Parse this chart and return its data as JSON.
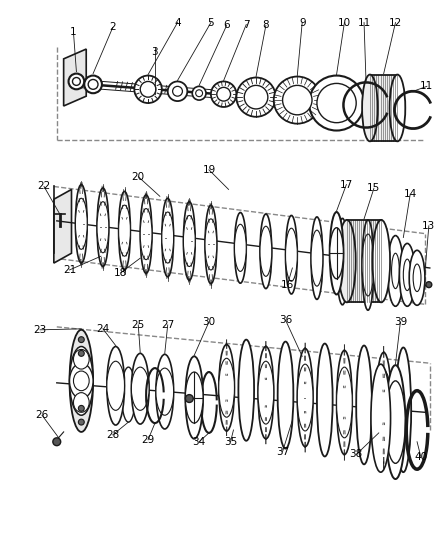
{
  "bg_color": "#ffffff",
  "line_color": "#1a1a1a",
  "dashed_color": "#888888",
  "label_color": "#000000",
  "label_fontsize": 7.5,
  "figsize": [
    4.38,
    5.33
  ],
  "dpi": 100
}
